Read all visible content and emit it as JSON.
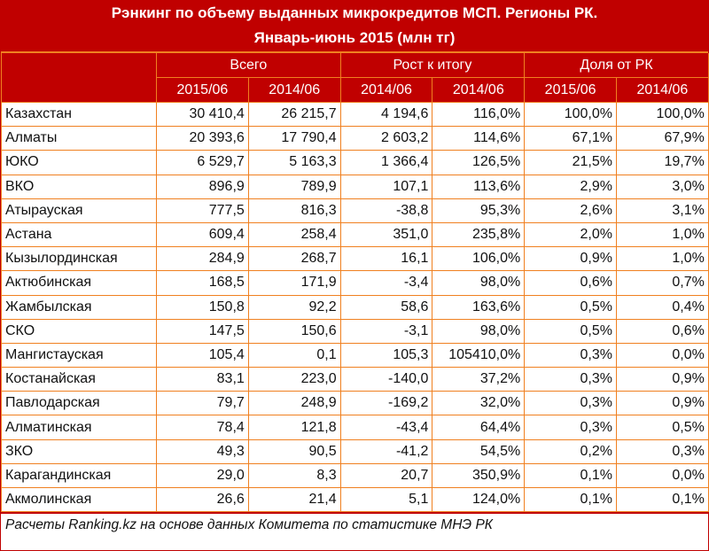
{
  "chart_data": {
    "type": "table",
    "title": "Рэнкинг по объему выданных микрокредитов МСП. Регионы РК.",
    "subtitle": "Январь-июнь 2015 (млн тг)",
    "group_headers": [
      "Всего",
      "Рост к итогу",
      "Доля от РК"
    ],
    "sub_headers": [
      "2015/06",
      "2014/06",
      "2014/06",
      "2014/06",
      "2015/06",
      "2014/06"
    ],
    "rows": [
      {
        "region": "Казахстан",
        "values": [
          "30 410,4",
          "26 215,7",
          "4 194,6",
          "116,0%",
          "100,0%",
          "100,0%"
        ]
      },
      {
        "region": "Алматы",
        "values": [
          "20 393,6",
          "17 790,4",
          "2 603,2",
          "114,6%",
          "67,1%",
          "67,9%"
        ]
      },
      {
        "region": "ЮКО",
        "values": [
          "6 529,7",
          "5 163,3",
          "1 366,4",
          "126,5%",
          "21,5%",
          "19,7%"
        ]
      },
      {
        "region": "ВКО",
        "values": [
          "896,9",
          "789,9",
          "107,1",
          "113,6%",
          "2,9%",
          "3,0%"
        ]
      },
      {
        "region": "Атырауская",
        "values": [
          "777,5",
          "816,3",
          "-38,8",
          "95,3%",
          "2,6%",
          "3,1%"
        ]
      },
      {
        "region": "Астана",
        "values": [
          "609,4",
          "258,4",
          "351,0",
          "235,8%",
          "2,0%",
          "1,0%"
        ]
      },
      {
        "region": "Кызылординская",
        "values": [
          "284,9",
          "268,7",
          "16,1",
          "106,0%",
          "0,9%",
          "1,0%"
        ]
      },
      {
        "region": "Актюбинская",
        "values": [
          "168,5",
          "171,9",
          "-3,4",
          "98,0%",
          "0,6%",
          "0,7%"
        ]
      },
      {
        "region": "Жамбылская",
        "values": [
          "150,8",
          "92,2",
          "58,6",
          "163,6%",
          "0,5%",
          "0,4%"
        ]
      },
      {
        "region": "СКО",
        "values": [
          "147,5",
          "150,6",
          "-3,1",
          "98,0%",
          "0,5%",
          "0,6%"
        ]
      },
      {
        "region": "Мангистауская",
        "values": [
          "105,4",
          "0,1",
          "105,3",
          "105410,0%",
          "0,3%",
          "0,0%"
        ]
      },
      {
        "region": "Костанайская",
        "values": [
          "83,1",
          "223,0",
          "-140,0",
          "37,2%",
          "0,3%",
          "0,9%"
        ]
      },
      {
        "region": "Павлодарская",
        "values": [
          "79,7",
          "248,9",
          "-169,2",
          "32,0%",
          "0,3%",
          "0,9%"
        ]
      },
      {
        "region": "Алматинская",
        "values": [
          "78,4",
          "121,8",
          "-43,4",
          "64,4%",
          "0,3%",
          "0,5%"
        ]
      },
      {
        "region": "ЗКО",
        "values": [
          "49,3",
          "90,5",
          "-41,2",
          "54,5%",
          "0,2%",
          "0,3%"
        ]
      },
      {
        "region": "Карагандинская",
        "values": [
          "29,0",
          "8,3",
          "20,7",
          "350,9%",
          "0,1%",
          "0,0%"
        ]
      },
      {
        "region": "Акмолинская",
        "values": [
          "26,6",
          "21,4",
          "5,1",
          "124,0%",
          "0,1%",
          "0,1%"
        ]
      }
    ],
    "source": "Расчеты Ranking.kz на основе данных Комитета по статистике МНЭ РК"
  },
  "colors": {
    "header_bg": "#c00000",
    "border": "#f08020",
    "header_text": "#ffffff"
  }
}
